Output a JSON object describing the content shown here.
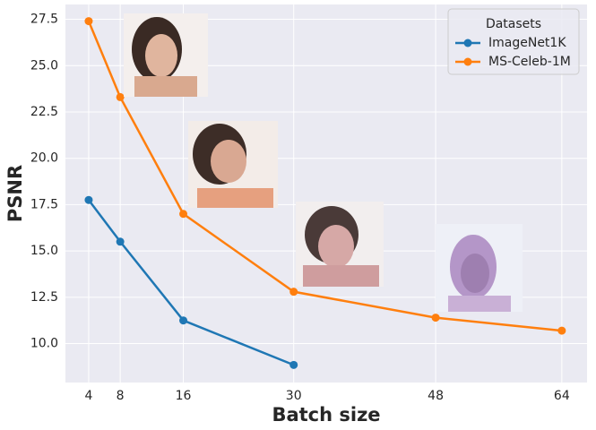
{
  "chart_data": {
    "type": "line",
    "xlabel": "Batch size",
    "ylabel": "PSNR",
    "xlim": [
      1.05,
      67.2
    ],
    "ylim": [
      7.9,
      28.3
    ],
    "xticks": [
      4,
      8,
      16,
      30,
      48,
      64
    ],
    "yticks": [
      {
        "value": 10,
        "label": "10.0"
      },
      12.5,
      {
        "value": 15,
        "label": "15.0"
      },
      17.5,
      {
        "value": 20,
        "label": "20.0"
      },
      22.5,
      {
        "value": 25,
        "label": "25.0"
      },
      27.5
    ],
    "grid": true,
    "legend_title": "Datasets",
    "legend_loc": "upper right",
    "series": [
      {
        "name": "ImageNet1K",
        "color": "#1f77b4",
        "x": [
          4,
          8,
          16,
          30
        ],
        "values": [
          17.75,
          15.5,
          11.25,
          8.85
        ]
      },
      {
        "name": "MS-Celeb-1M",
        "color": "#ff7f0e",
        "x": [
          4,
          8,
          16,
          30,
          48,
          64
        ],
        "values": [
          27.4,
          23.3,
          17.0,
          12.8,
          11.4,
          10.7
        ]
      }
    ]
  }
}
